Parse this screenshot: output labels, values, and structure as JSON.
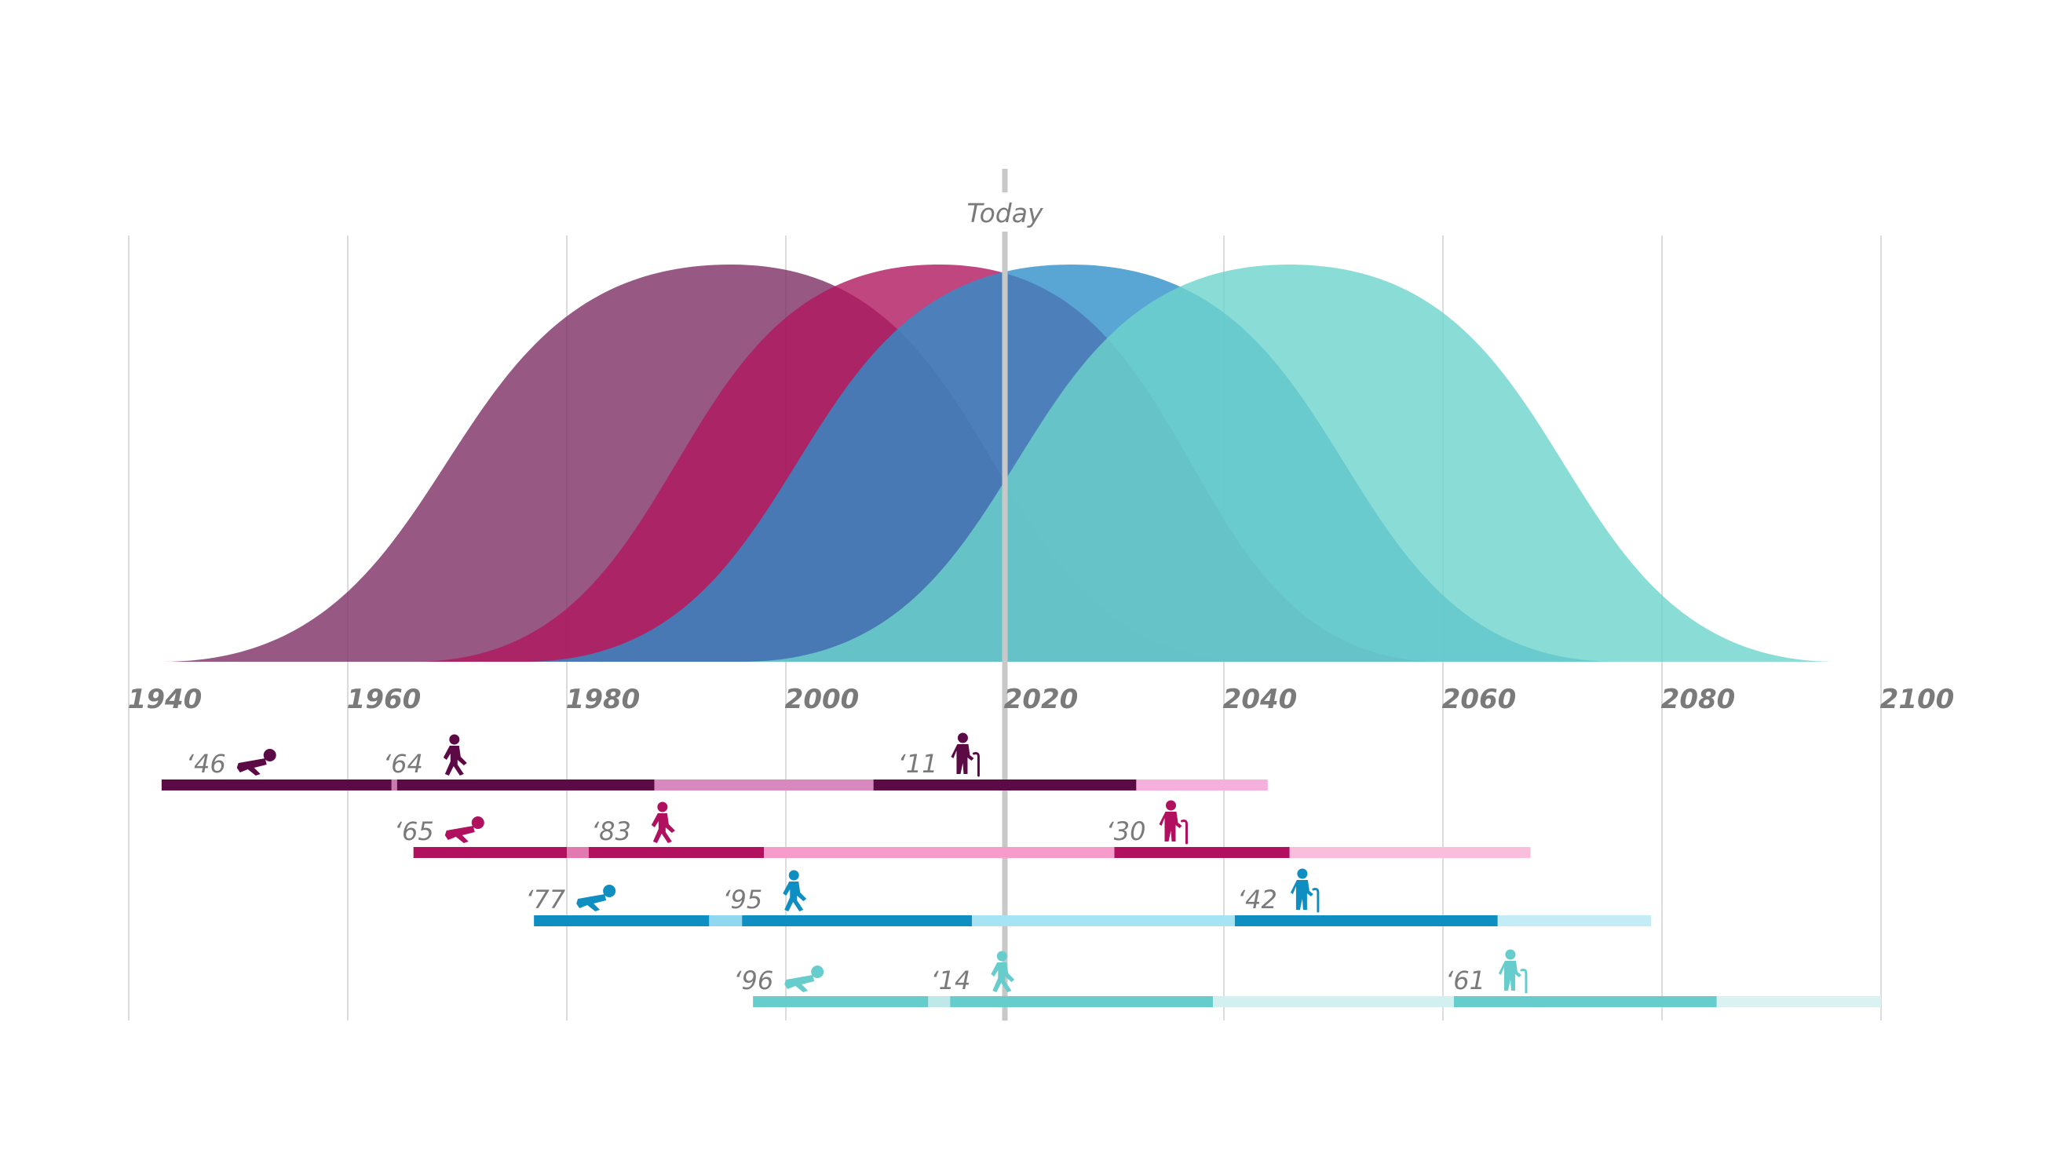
{
  "chart_data": {
    "type": "area",
    "title": "",
    "xlabel": "",
    "ylabel": "",
    "xlim": [
      1940,
      2100
    ],
    "x_ticks": [
      "1940",
      "1960",
      "1980",
      "2000",
      "2020",
      "2040",
      "2060",
      "2080",
      "2100"
    ],
    "grid": true,
    "today": {
      "label": "Today",
      "year": 2020
    },
    "series": [
      {
        "start": 1943,
        "peak": 1995,
        "end": 2043,
        "color": "#7d2e64"
      },
      {
        "start": 1966,
        "peak": 2014,
        "end": 2060,
        "color": "#b0185f"
      },
      {
        "start": 1976,
        "peak": 2026,
        "end": 2076,
        "color": "#2f8fc9"
      },
      {
        "start": 1996,
        "peak": 2046,
        "end": 2096,
        "color": "#6dd4cc"
      }
    ],
    "timelines": [
      {
        "color": "#5c0a45",
        "segments": [
          {
            "from": 1943,
            "to": 1964,
            "color": "#5c0a45"
          },
          {
            "from": 1964,
            "to": 1964.5,
            "color": "#c97ab0"
          },
          {
            "from": 1964.5,
            "to": 1988,
            "color": "#5c0a45"
          },
          {
            "from": 1988,
            "to": 2008,
            "color": "#d789bf"
          },
          {
            "from": 2008,
            "to": 2032,
            "color": "#5c0a45"
          },
          {
            "from": 2032,
            "to": 2044,
            "color": "#f5b0dd"
          }
        ],
        "markers": [
          {
            "label": "‘46",
            "year": 1946,
            "icon": "baby-crawling-icon"
          },
          {
            "label": "‘64",
            "year": 1964,
            "icon": "person-walking-icon"
          },
          {
            "label": "‘11",
            "year": 2011,
            "icon": "elderly-person-cane-icon"
          }
        ]
      },
      {
        "color": "#b0105e",
        "segments": [
          {
            "from": 1966,
            "to": 1980,
            "color": "#b0105e"
          },
          {
            "from": 1980,
            "to": 1982,
            "color": "#e27ab0"
          },
          {
            "from": 1982,
            "to": 1998,
            "color": "#b0105e"
          },
          {
            "from": 1998,
            "to": 2030,
            "color": "#f59ccb"
          },
          {
            "from": 2030,
            "to": 2046,
            "color": "#b0105e"
          },
          {
            "from": 2046,
            "to": 2068,
            "color": "#f9bedc"
          }
        ],
        "markers": [
          {
            "label": "‘65",
            "year": 1965,
            "icon": "baby-crawling-icon"
          },
          {
            "label": "‘83",
            "year": 1983,
            "icon": "person-walking-icon"
          },
          {
            "label": "‘30",
            "year": 2030,
            "icon": "elderly-person-cane-icon"
          }
        ]
      },
      {
        "color": "#0f8ec2",
        "segments": [
          {
            "from": 1977,
            "to": 1993,
            "color": "#0f8ec2"
          },
          {
            "from": 1993,
            "to": 1996,
            "color": "#8fd8ef"
          },
          {
            "from": 1996,
            "to": 2017,
            "color": "#0f8ec2"
          },
          {
            "from": 2017,
            "to": 2041,
            "color": "#a6e3f3"
          },
          {
            "from": 2041,
            "to": 2065,
            "color": "#0f8ec2"
          },
          {
            "from": 2065,
            "to": 2079,
            "color": "#c4ecf7"
          }
        ],
        "markers": [
          {
            "label": "‘77",
            "year": 1977,
            "icon": "baby-crawling-icon"
          },
          {
            "label": "‘95",
            "year": 1995,
            "icon": "person-walking-icon"
          },
          {
            "label": "‘42",
            "year": 2042,
            "icon": "elderly-person-cane-icon"
          }
        ]
      },
      {
        "color": "#66cccc",
        "segments": [
          {
            "from": 1997,
            "to": 2013,
            "color": "#66cccc"
          },
          {
            "from": 2013,
            "to": 2015,
            "color": "#bfe9e9"
          },
          {
            "from": 2015,
            "to": 2039,
            "color": "#66cccc"
          },
          {
            "from": 2039,
            "to": 2061,
            "color": "#d2f0f0"
          },
          {
            "from": 2061,
            "to": 2085,
            "color": "#66cccc"
          },
          {
            "from": 2085,
            "to": 2100,
            "color": "#daf2f2"
          }
        ],
        "markers": [
          {
            "label": "‘96",
            "year": 1996,
            "icon": "baby-crawling-icon"
          },
          {
            "label": "‘14",
            "year": 2014,
            "icon": "person-walking-icon"
          },
          {
            "label": "‘61",
            "year": 2061,
            "icon": "elderly-person-cane-icon"
          }
        ]
      }
    ]
  }
}
